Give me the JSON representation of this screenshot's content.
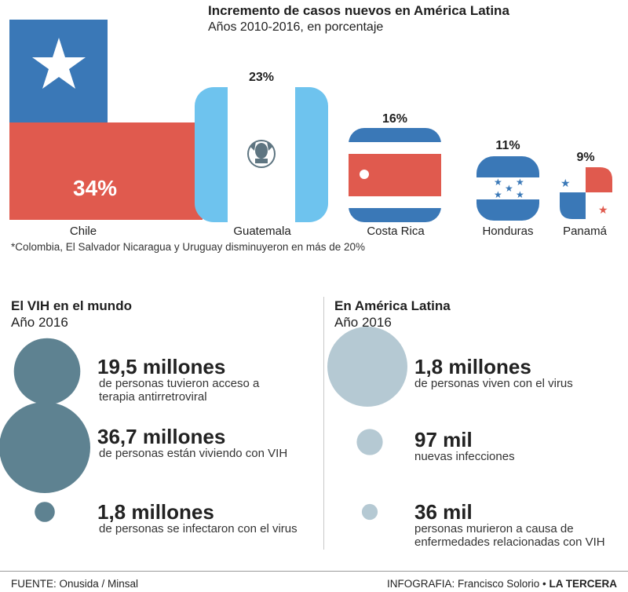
{
  "chart_data": [
    {
      "type": "bar",
      "title": "Incremento de casos nuevos en América Latina",
      "subtitle": "Años 2010-2016, en porcentaje",
      "categories": [
        "Chile",
        "Guatemala",
        "Costa Rica",
        "Honduras",
        "Panamá"
      ],
      "values": [
        34,
        23,
        16,
        11,
        9
      ],
      "value_labels": [
        "34%",
        "23%",
        "16%",
        "11%",
        "9%"
      ],
      "footnote": "*Colombia, El Salvador Nicaragua y Uruguay disminuyeron en más de 20%"
    },
    {
      "type": "scatter",
      "title": "El VIH en el mundo",
      "subtitle": "Año 2016",
      "color": "#5e8291",
      "items": [
        {
          "value": 19.5,
          "label": "19,5 millones",
          "description": "de personas tuvieron acceso a terapia antirretroviral"
        },
        {
          "value": 36.7,
          "label": "36,7 millones",
          "description": "de personas están viviendo con VIH"
        },
        {
          "value": 1.8,
          "label": "1,8 millones",
          "description": "de personas se infectaron con el virus"
        }
      ]
    },
    {
      "type": "scatter",
      "title": "En América Latina",
      "subtitle": "Año 2016",
      "color": "#b5c9d3",
      "items": [
        {
          "value": 1.8,
          "label": "1,8 millones",
          "description": "de personas viven con el virus"
        },
        {
          "value": 0.097,
          "label": "97 mil",
          "description": "nuevas infecciones"
        },
        {
          "value": 0.036,
          "label": "36 mil",
          "description": "personas murieron a causa de enfermedades relacionadas con VIH"
        }
      ]
    }
  ],
  "source": "FUENTE: Onusida / Minsal",
  "credit": "INFOGRAFIA: Francisco Solorio",
  "publisher": "LA TERCERA",
  "colors": {
    "chile_red": "#e05a4e",
    "chile_blue": "#3a78b7",
    "guatemala_blue": "#6ec3ee",
    "costa_rica_blue": "#3a78b7",
    "costa_rica_red": "#e05a4e",
    "honduras_blue": "#3a78b7",
    "panama_red": "#e05a4e",
    "panama_blue": "#3a78b7",
    "world_bubble": "#5e8291",
    "latam_bubble": "#b5c9d3"
  }
}
